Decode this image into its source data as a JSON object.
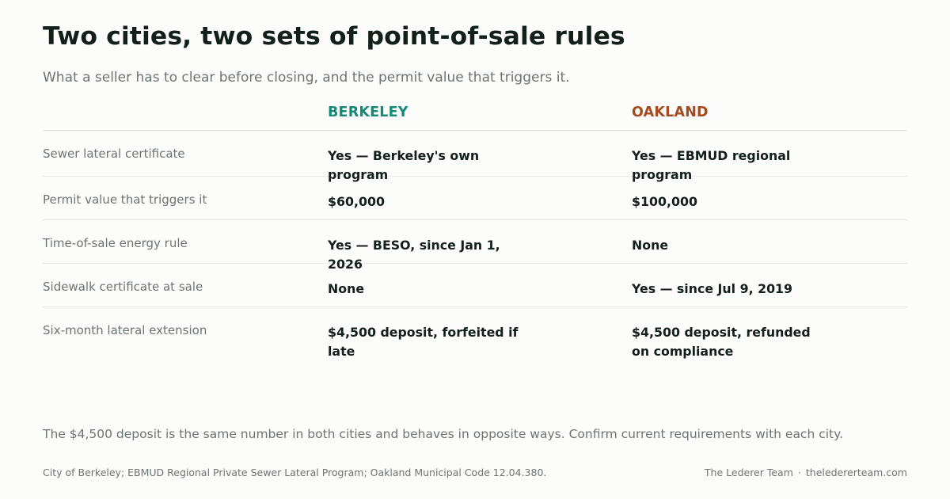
{
  "header": {
    "title": "Two cities, two sets of point-of-sale rules",
    "subtitle": "What a seller has to clear before closing, and the permit value that triggers it."
  },
  "table": {
    "columns": [
      "BERKELEY",
      "OAKLAND"
    ],
    "rows": [
      {
        "label": "Sewer lateral certificate",
        "berkeley": "Yes — Berkeley's own program",
        "oakland": "Yes — EBMUD regional program"
      },
      {
        "label": "Permit value that triggers it",
        "berkeley": "$60,000",
        "oakland": "$100,000"
      },
      {
        "label": "Time-of-sale energy rule",
        "berkeley": "Yes — BESO, since Jan 1, 2026",
        "oakland": "None"
      },
      {
        "label": "Sidewalk certificate at sale",
        "berkeley": "None",
        "oakland": "Yes — since Jul 9, 2019"
      },
      {
        "label": "Six-month lateral extension",
        "berkeley": "$4,500 deposit, forfeited if late",
        "oakland": "$4,500 deposit, refunded on compliance"
      }
    ]
  },
  "footer": {
    "note": "The $4,500 deposit is the same number in both cities and behaves in opposite ways. Confirm current requirements with each city.",
    "sources": "City of Berkeley; EBMUD Regional Private Sewer Lateral Program; Oakland Municipal Code 12.04.380.",
    "brand": "The Lederer Team",
    "separator": "·",
    "website": "theledererteam.com"
  },
  "colors": {
    "berkeley_accent": "#178a77",
    "oakland_accent": "#a54a1e",
    "title": "#132019",
    "muted": "#6b7670",
    "background": "#fcfcfa"
  }
}
